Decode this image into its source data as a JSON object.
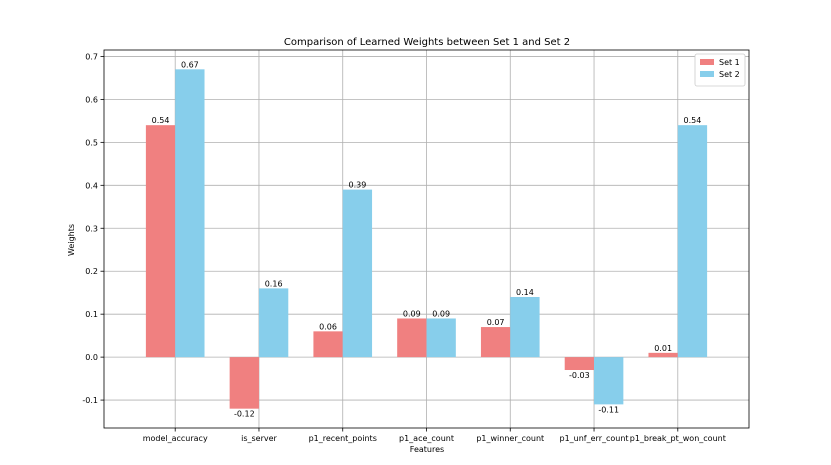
{
  "chart_data": {
    "type": "bar",
    "title": "Comparison of Learned Weights between Set 1 and Set 2",
    "xlabel": "Features",
    "ylabel": "Weights",
    "categories": [
      "model_accuracy",
      "is_server",
      "p1_recent_points",
      "p1_ace_count",
      "p1_winner_count",
      "p1_unf_err_count",
      "p1_break_pt_won_count"
    ],
    "series": [
      {
        "name": "Set 1",
        "color": "#f08080",
        "values": [
          0.54,
          -0.12,
          0.06,
          0.09,
          0.07,
          -0.03,
          0.01
        ],
        "labels": [
          "0.54",
          "-0.12",
          "0.06",
          "0.09",
          "0.07",
          "-0.03",
          "0.01"
        ]
      },
      {
        "name": "Set 2",
        "color": "#87ceeb",
        "values": [
          0.67,
          0.16,
          0.39,
          0.09,
          0.14,
          -0.11,
          0.54
        ],
        "labels": [
          "0.67",
          "0.16",
          "0.39",
          "0.09",
          "0.14",
          "-0.11",
          "0.54"
        ]
      }
    ],
    "ylim": [
      -0.165,
      0.715
    ],
    "yticks": [
      "-0.1",
      "0.0",
      "0.1",
      "0.2",
      "0.3",
      "0.4",
      "0.5",
      "0.6",
      "0.7"
    ],
    "ytick_values": [
      -0.1,
      0.0,
      0.1,
      0.2,
      0.3,
      0.4,
      0.5,
      0.6,
      0.7
    ],
    "grid": true,
    "legend": "top-right"
  }
}
